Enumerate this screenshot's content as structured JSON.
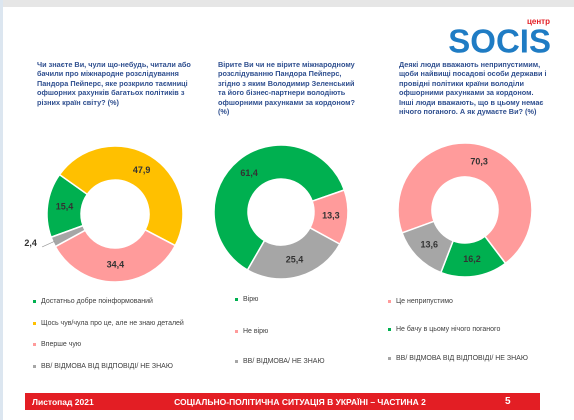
{
  "logo": {
    "top": "центр",
    "name": "SOCIS"
  },
  "chart_data": [
    {
      "type": "pie",
      "title": "Чи знаєте Ви, чули що-небудь, читали або бачили про міжнародне розслідування Пандора Пейперс, яке розкрило таємниці офшорних рахунків багатьох політиків з різних країн світу? (%)",
      "categories": [
        "Достатньо добре поінформований",
        "Щось чув/чула про це, але не знаю деталей",
        "Вперше чую",
        "ВВ/ ВІДМОВА ВІД ВІДПОВІДІ/ НЕ ЗНАЮ"
      ],
      "values": [
        15.4,
        47.9,
        34.4,
        2.4
      ],
      "value_labels": [
        "15,4",
        "47,9",
        "34,4",
        "2,4"
      ],
      "colors": [
        "#00B050",
        "#FFC000",
        "#FF9B9B",
        "#A6A6A6"
      ]
    },
    {
      "type": "pie",
      "title": "Вірите Ви чи не вірите міжнародному розслідуванню Пандора Пейперс, згідно з яким Володимир Зеленський та його бізнес-партнери володіють офшорними рахунками за кордоном?(%)",
      "categories": [
        "Вірю",
        "Не вірю",
        "ВВ/ ВІДМОВА/ НЕ ЗНАЮ"
      ],
      "values": [
        61.4,
        13.3,
        25.4
      ],
      "value_labels": [
        "61,4",
        "13,3",
        "25,4"
      ],
      "colors": [
        "#00B050",
        "#FF9B9B",
        "#A6A6A6"
      ]
    },
    {
      "type": "pie",
      "title": "Деякі люди вважають неприпустимим, щоби найвищі посадові особи держави і провідні політики країни володіли офшорними рахунками за кордоном. Інші люди вважають, що в цьому немає нічого поганого.  А як думаєте Ви? (%)",
      "categories": [
        "Це неприпустимо",
        "Не бачу в цьому нічого поганого",
        "ВВ/ ВІДМОВА ВІД ВІДПОВІДІ/ НЕ ЗНАЮ"
      ],
      "values": [
        70.3,
        16.2,
        13.6
      ],
      "value_labels": [
        "70,3",
        "16,2",
        "13,6"
      ],
      "colors": [
        "#FF9B9B",
        "#00B050",
        "#A6A6A6"
      ]
    }
  ],
  "footer": {
    "date": "Листопад 2021",
    "title": "СОЦІАЛЬНО-ПОЛІТИЧНА СИТУАЦІЯ В УКРАЇНІ – ЧАСТИНА 2",
    "page": "5"
  }
}
